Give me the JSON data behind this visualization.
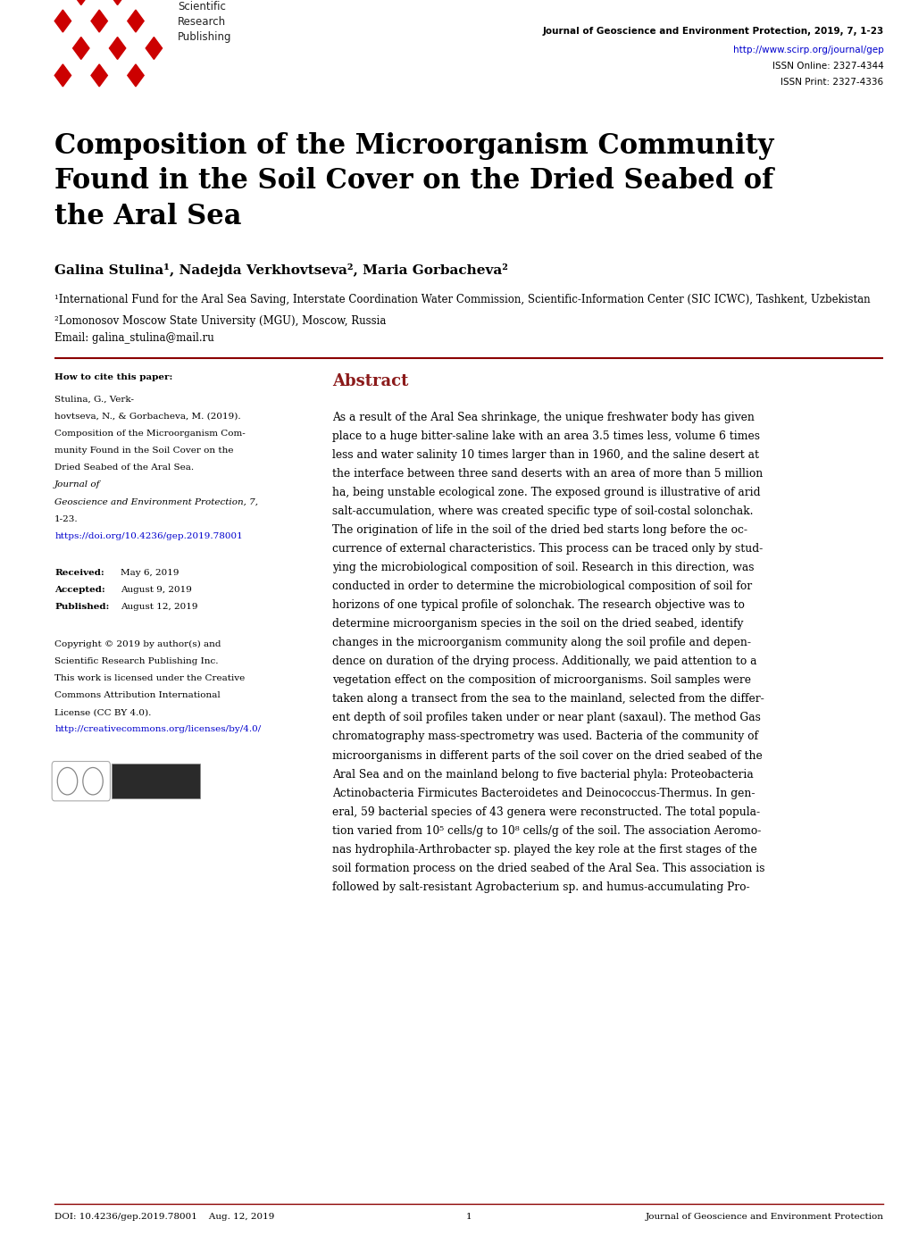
{
  "page_width": 10.2,
  "page_height": 13.84,
  "bg_color": "#ffffff",
  "header": {
    "journal_text": "Journal of Geoscience and Environment Protection, 2019, 7, 1-23",
    "url_text": "http://www.scirp.org/journal/gep",
    "issn_online": "ISSN Online: 2327-4344",
    "issn_print": "ISSN Print: 2327-4336"
  },
  "title": "Composition of the Microorganism Community\nFound in the Soil Cover on the Dried Seabed of\nthe Aral Sea",
  "authors": "Galina Stulina¹, Nadejda Verkhovtseva², Maria Gorbacheva²",
  "affiliation1": "¹International Fund for the Aral Sea Saving, Interstate Coordination Water Commission, Scientific-Information Center (SIC ICWC), Tashkent, Uzbekistan",
  "affiliation2": "²Lomonosov Moscow State University (MGU), Moscow, Russia",
  "email": "Email: galina_stulina@mail.ru",
  "left_col": {
    "doi_text": "https://doi.org/10.4236/gep.2019.78001",
    "cc_url": "http://creativecommons.org/licenses/by/4.0/"
  },
  "abstract_title": "Abstract",
  "abstract_lines": [
    "As a result of the Aral Sea shrinkage, the unique freshwater body has given",
    "place to a huge bitter-saline lake with an area 3.5 times less, volume 6 times",
    "less and water salinity 10 times larger than in 1960, and the saline desert at",
    "the interface between three sand deserts with an area of more than 5 million",
    "ha, being unstable ecological zone. The exposed ground is illustrative of arid",
    "salt-accumulation, where was created specific type of soil-costal solonchak.",
    "The origination of life in the soil of the dried bed starts long before the oc-",
    "currence of external characteristics. This process can be traced only by stud-",
    "ying the microbiological composition of soil. Research in this direction, was",
    "conducted in order to determine the microbiological composition of soil for",
    "horizons of one typical profile of solonchak. The research objective was to",
    "determine microorganism species in the soil on the dried seabed, identify",
    "changes in the microorganism community along the soil profile and depen-",
    "dence on duration of the drying process. Additionally, we paid attention to a",
    "vegetation effect on the composition of microorganisms. Soil samples were",
    "taken along a transect from the sea to the mainland, selected from the differ-",
    "ent depth of soil profiles taken under or near plant (saxaul). The method Gas",
    "chromatography mass-spectrometry was used. Bacteria of the community of",
    "microorganisms in different parts of the soil cover on the dried seabed of the",
    "Aral Sea and on the mainland belong to five bacterial phyla: Proteobacteria",
    "Actinobacteria Firmicutes Bacteroidetes and Deinococcus-Thermus. In gen-",
    "eral, 59 bacterial species of 43 genera were reconstructed. The total popula-",
    "tion varied from 10⁵ cells/g to 10⁸ cells/g of the soil. The association Aeromo-",
    "nas hydrophila-Arthrobacter sp. played the key role at the first stages of the",
    "soil formation process on the dried seabed of the Aral Sea. This association is",
    "followed by salt-resistant Agrobacterium sp. and humus-accumulating Pro-"
  ],
  "cite_lines": [
    "Stulina, G., Verk-",
    "hovtseva, N., & Gorbacheva, M. (2019).",
    "Composition of the Microorganism Com-",
    "munity Found in the Soil Cover on the",
    "Dried Seabed of the Aral Sea."
  ],
  "cite_italic_lines": [
    "Journal of",
    "Geoscience and Environment Protection, 7,"
  ],
  "cite_end": "1-23.",
  "copyright_lines": [
    "Copyright © 2019 by author(s) and",
    "Scientific Research Publishing Inc.",
    "This work is licensed under the Creative",
    "Commons Attribution International",
    "License (CC BY 4.0)."
  ],
  "footer_doi": "DOI: 10.4236/gep.2019.78001",
  "footer_date": "Aug. 12, 2019",
  "footer_page": "1",
  "footer_journal": "Journal of Geoscience and Environment Protection",
  "divider_color": "#8B0000",
  "abstract_color": "#8B1A1A",
  "link_color": "#0000CD",
  "text_color": "#000000",
  "red_color": "#CC0000"
}
